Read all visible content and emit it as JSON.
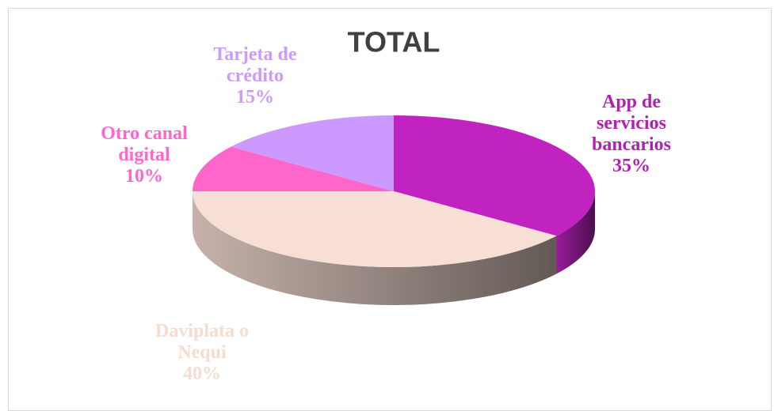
{
  "chart_data": {
    "type": "pie",
    "title": "TOTAL",
    "categories": [
      "App de servicios bancarios",
      "Daviplata o Nequi",
      "Otro canal digital",
      "Tarjeta de crédito"
    ],
    "values": [
      35,
      40,
      10,
      15
    ],
    "value_labels": [
      "35%",
      "40%",
      "10%",
      "15%"
    ],
    "colors": [
      "#c023c0",
      "#f7dfd5",
      "#ff66cc",
      "#cc99ff"
    ]
  }
}
